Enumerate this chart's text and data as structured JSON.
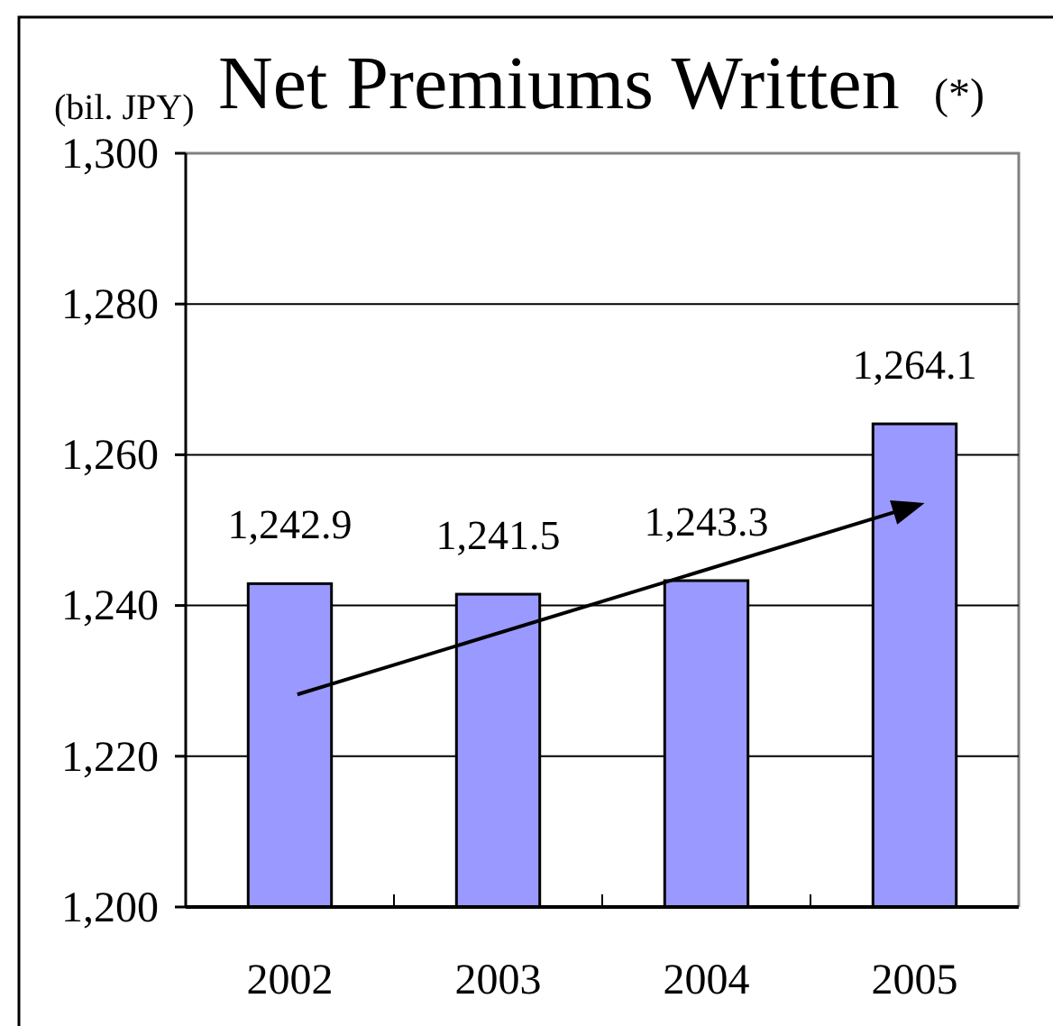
{
  "chart_data": {
    "type": "bar",
    "title": "Net Premiums Written",
    "ylabel": "(bil. JPY)",
    "annotations": [
      "(*)"
    ],
    "categories": [
      "2002",
      "2003",
      "2004",
      "2005"
    ],
    "values": [
      1242.9,
      1241.5,
      1243.3,
      1264.1
    ],
    "color": "#9999ff",
    "value_labels": [
      "1,242.9",
      "1,241.5",
      "1,243.3",
      "1,264.1"
    ],
    "ylim": [
      1200,
      1300
    ],
    "yticks": [
      {
        "value": 1200,
        "label": "1,200"
      },
      {
        "value": 1220,
        "label": "1,220"
      },
      {
        "value": 1240,
        "label": "1,240"
      },
      {
        "value": 1260,
        "label": "1,260"
      },
      {
        "value": 1280,
        "label": "1,280"
      },
      {
        "value": 1300,
        "label": "1,300"
      }
    ],
    "grid": "y"
  }
}
